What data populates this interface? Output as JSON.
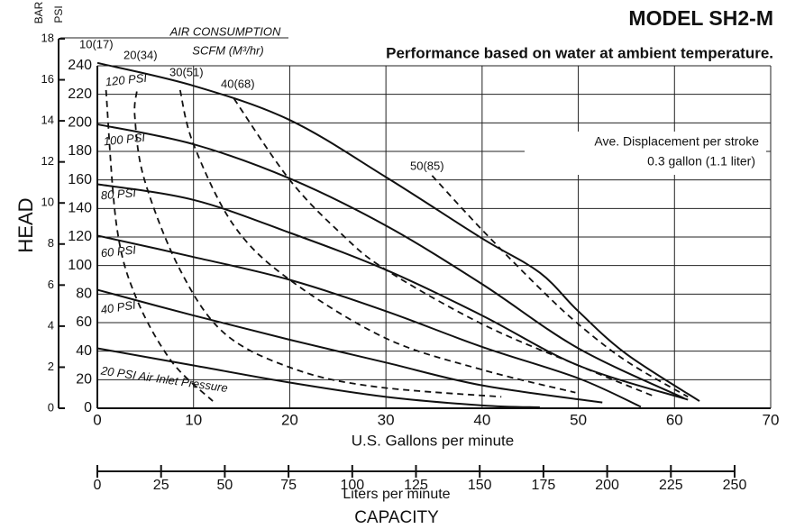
{
  "chart_data": {
    "type": "line",
    "title": "MODEL SH2-M",
    "subtitle": "Performance based on water at ambient temperature.",
    "y_label": "HEAD",
    "y_unit": "PSI",
    "y2_label": "BAR",
    "x_label": "U.S. Gallons per minute",
    "x2_label": "Liters per minute",
    "caption": "CAPACITY",
    "xlim": [
      0,
      70
    ],
    "xticks": [
      0,
      10,
      20,
      30,
      40,
      50,
      60,
      70
    ],
    "ylim": [
      0,
      240
    ],
    "yticks": [
      0,
      20,
      40,
      60,
      80,
      100,
      120,
      140,
      160,
      180,
      200,
      220,
      240
    ],
    "y2lim": [
      0,
      18
    ],
    "y2ticks": [
      0,
      2,
      4,
      6,
      8,
      10,
      12,
      14,
      16,
      18
    ],
    "x2lim": [
      0,
      250
    ],
    "x2ticks": [
      0,
      25,
      50,
      75,
      100,
      125,
      150,
      175,
      200,
      225,
      250
    ],
    "grid": true,
    "annotations": [
      "AIR CONSUMPTION",
      "SCFM (M³/hr)",
      "Ave. Displacement per stroke",
      "0.3 gallon (1.1 liter)"
    ],
    "series": [
      {
        "name": "120 PSI",
        "color": "#111",
        "style": "solid",
        "x": [
          0,
          10,
          20,
          30,
          40,
          46,
          50,
          55,
          62.6
        ],
        "values": [
          242,
          226,
          202,
          162,
          119,
          95,
          68,
          38,
          5
        ]
      },
      {
        "name": "100 PSI",
        "color": "#111",
        "style": "solid",
        "x": [
          0,
          10,
          20,
          30,
          40,
          50,
          61
        ],
        "values": [
          199,
          185,
          161,
          128,
          87,
          42,
          7
        ]
      },
      {
        "name": "80 PSI",
        "color": "#111",
        "style": "solid",
        "x": [
          0,
          10,
          20,
          30,
          40,
          50,
          61.4
        ],
        "values": [
          157,
          146,
          123,
          97,
          65,
          30,
          6
        ]
      },
      {
        "name": "60 PSI",
        "color": "#111",
        "style": "solid",
        "x": [
          0,
          10,
          20,
          30,
          40,
          50,
          56.5
        ],
        "values": [
          121,
          106,
          90,
          68,
          43,
          21,
          1
        ]
      },
      {
        "name": "40 PSI",
        "color": "#111",
        "style": "solid",
        "x": [
          0,
          10,
          20,
          30,
          40,
          52.5
        ],
        "values": [
          83,
          65,
          48,
          32,
          16,
          4
        ]
      },
      {
        "name": "20 PSI Air Inlet Pressure",
        "color": "#111",
        "style": "solid",
        "x": [
          0,
          10,
          20,
          30,
          40,
          46
        ],
        "values": [
          42,
          30,
          18,
          8,
          2,
          0.6
        ]
      },
      {
        "name": "10(17)",
        "color": "#111",
        "style": "dashed",
        "x": [
          0.9,
          2,
          4,
          7.7,
          12
        ],
        "values": [
          223,
          128,
          78,
          33,
          5
        ]
      },
      {
        "name": "20(34)",
        "color": "#111",
        "style": "dashed",
        "x": [
          4.1,
          3.9,
          4.9,
          8.6,
          13.3,
          20.7,
          29,
          42
        ],
        "values": [
          222,
          204,
          160,
          97,
          52,
          27,
          15,
          8
        ]
      },
      {
        "name": "30(51)",
        "color": "#111",
        "style": "dashed",
        "x": [
          8.6,
          10,
          14.2,
          20,
          30,
          40,
          49.7
        ],
        "values": [
          223,
          185,
          128,
          90,
          49,
          27,
          11
        ]
      },
      {
        "name": "40(68)",
        "color": "#111",
        "style": "dashed",
        "x": [
          14.2,
          20,
          25.4,
          30,
          40,
          50,
          58
        ],
        "values": [
          217,
          160,
          122,
          97,
          59,
          30,
          8
        ]
      },
      {
        "name": "50(85)",
        "color": "#111",
        "style": "dashed",
        "x": [
          34.8,
          40,
          46,
          50,
          55,
          61.4
        ],
        "values": [
          163,
          125,
          84,
          59,
          33,
          8
        ]
      }
    ]
  }
}
